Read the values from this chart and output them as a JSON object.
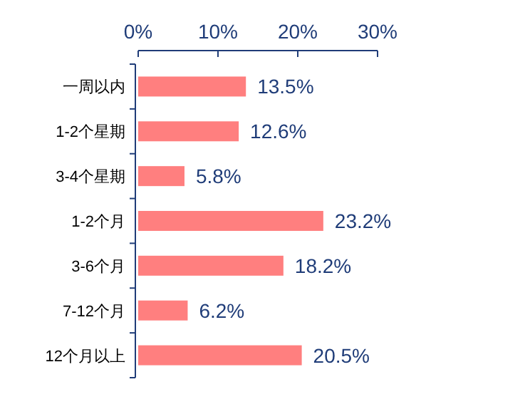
{
  "chart_data": {
    "type": "bar",
    "orientation": "horizontal",
    "categories": [
      "一周以内",
      "1-2个星期",
      "3-4个星期",
      "1-2个月",
      "3-6个月",
      "7-12个月",
      "12个月以上"
    ],
    "values": [
      13.5,
      12.6,
      5.8,
      23.2,
      18.2,
      6.2,
      20.5
    ],
    "value_labels": [
      "13.5%",
      "12.6%",
      "5.8%",
      "23.2%",
      "18.2%",
      "6.2%",
      "20.5%"
    ],
    "color": "#ff7f7f",
    "xlim": [
      0,
      30
    ],
    "xticks": [
      {
        "value": 0,
        "label": "0%"
      },
      {
        "value": 10,
        "label": "10%"
      },
      {
        "value": 20,
        "label": "20%"
      },
      {
        "value": 30,
        "label": "30%"
      }
    ],
    "grid": false
  }
}
